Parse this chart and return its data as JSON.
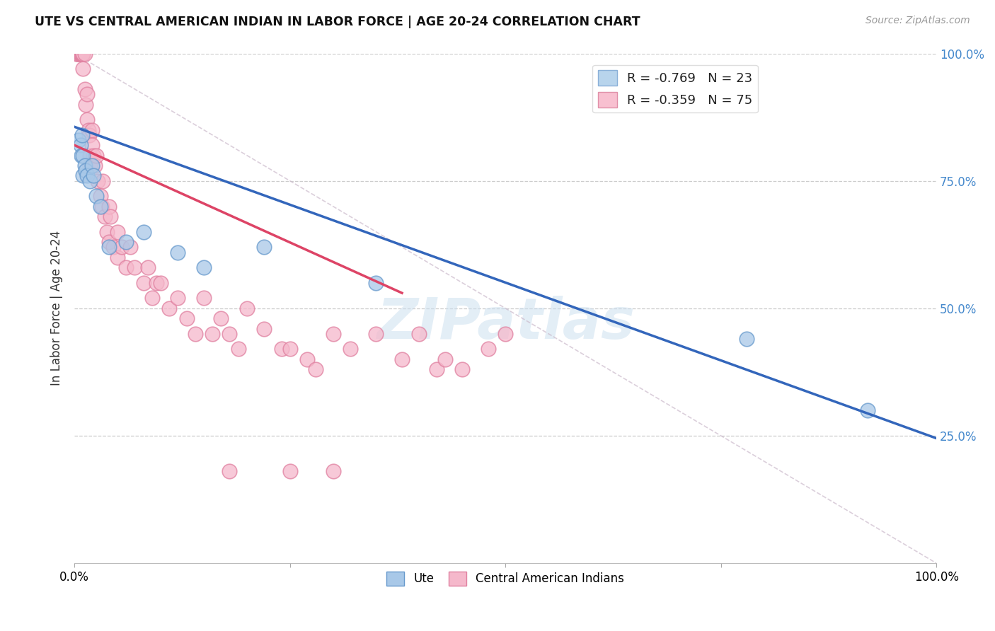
{
  "title": "UTE VS CENTRAL AMERICAN INDIAN IN LABOR FORCE | AGE 20-24 CORRELATION CHART",
  "source": "Source: ZipAtlas.com",
  "ylabel": "In Labor Force | Age 20-24",
  "xlim": [
    0.0,
    1.0
  ],
  "ylim": [
    0.0,
    1.0
  ],
  "ytick_labels": [
    "100.0%",
    "75.0%",
    "50.0%",
    "25.0%"
  ],
  "ytick_values": [
    1.0,
    0.75,
    0.5,
    0.25
  ],
  "watermark": "ZIPatlas",
  "ute_color": "#a8c8e8",
  "ute_edge_color": "#6699cc",
  "central_color": "#f5b8cb",
  "central_edge_color": "#e080a0",
  "ute_line_color": "#3366bb",
  "central_line_color": "#dd4466",
  "ref_line_color": "#ccbbcc",
  "bg_color": "#ffffff",
  "grid_color": "#cccccc",
  "right_axis_color": "#4488cc",
  "ute_x": [
    0.005,
    0.007,
    0.008,
    0.009,
    0.01,
    0.01,
    0.012,
    0.013,
    0.015,
    0.018,
    0.02,
    0.022,
    0.025,
    0.03,
    0.04,
    0.06,
    0.08,
    0.12,
    0.15,
    0.22,
    0.35,
    0.78,
    0.92
  ],
  "ute_y": [
    0.83,
    0.82,
    0.8,
    0.84,
    0.8,
    0.76,
    0.78,
    0.77,
    0.76,
    0.75,
    0.78,
    0.76,
    0.72,
    0.7,
    0.62,
    0.63,
    0.65,
    0.61,
    0.58,
    0.62,
    0.55,
    0.44,
    0.3
  ],
  "central_x": [
    0.002,
    0.003,
    0.004,
    0.005,
    0.006,
    0.007,
    0.008,
    0.008,
    0.009,
    0.01,
    0.01,
    0.01,
    0.012,
    0.012,
    0.013,
    0.015,
    0.015,
    0.016,
    0.017,
    0.018,
    0.018,
    0.02,
    0.02,
    0.022,
    0.024,
    0.025,
    0.027,
    0.03,
    0.032,
    0.033,
    0.035,
    0.038,
    0.04,
    0.04,
    0.042,
    0.045,
    0.05,
    0.05,
    0.055,
    0.06,
    0.065,
    0.07,
    0.08,
    0.085,
    0.09,
    0.095,
    0.1,
    0.11,
    0.12,
    0.13,
    0.14,
    0.15,
    0.16,
    0.17,
    0.18,
    0.19,
    0.2,
    0.22,
    0.24,
    0.25,
    0.27,
    0.28,
    0.3,
    0.32,
    0.35,
    0.38,
    0.4,
    0.42,
    0.43,
    0.45,
    0.48,
    0.5,
    0.18,
    0.25,
    0.3
  ],
  "central_y": [
    1.0,
    1.0,
    1.0,
    1.0,
    1.0,
    1.0,
    1.0,
    1.0,
    1.0,
    1.0,
    1.0,
    0.97,
    1.0,
    0.93,
    0.9,
    0.92,
    0.87,
    0.85,
    0.84,
    0.8,
    0.78,
    0.85,
    0.82,
    0.8,
    0.78,
    0.8,
    0.75,
    0.72,
    0.7,
    0.75,
    0.68,
    0.65,
    0.7,
    0.63,
    0.68,
    0.62,
    0.65,
    0.6,
    0.62,
    0.58,
    0.62,
    0.58,
    0.55,
    0.58,
    0.52,
    0.55,
    0.55,
    0.5,
    0.52,
    0.48,
    0.45,
    0.52,
    0.45,
    0.48,
    0.45,
    0.42,
    0.5,
    0.46,
    0.42,
    0.42,
    0.4,
    0.38,
    0.45,
    0.42,
    0.45,
    0.4,
    0.45,
    0.38,
    0.4,
    0.38,
    0.42,
    0.45,
    0.18,
    0.18,
    0.18
  ],
  "ute_line_x0": 0.0,
  "ute_line_y0": 0.856,
  "ute_line_x1": 1.0,
  "ute_line_y1": 0.245,
  "central_line_x0": 0.0,
  "central_line_y0": 0.82,
  "central_line_x1": 0.38,
  "central_line_y1": 0.53
}
